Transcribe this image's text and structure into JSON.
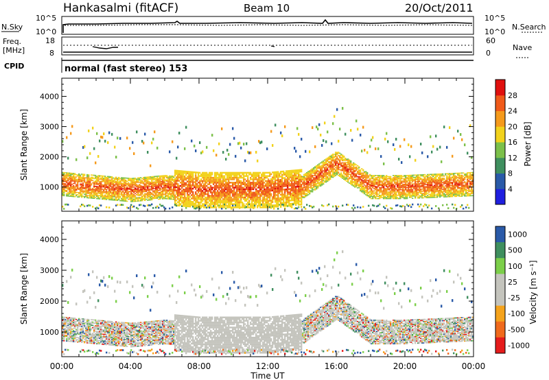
{
  "header": {
    "station": "Hankasalmi (fitACF)",
    "beam": "Beam 10",
    "date": "20/Oct/2011"
  },
  "noise_panel": {
    "left_label": "N.Sky",
    "right_label": "N.Search",
    "left_ticks": [
      "10^5",
      "10^0"
    ],
    "right_ticks": [
      "10^5",
      "10^0"
    ]
  },
  "freq_panel": {
    "left_label_1": "Freq.",
    "left_label_2": "[MHz]",
    "left_ticks": [
      "18",
      "8"
    ],
    "right_label": "Nave",
    "right_ticks": [
      "60",
      "0"
    ]
  },
  "cpid": {
    "label": "CPID",
    "value": "normal (fast stereo) 153"
  },
  "colors": {
    "power_scale": [
      "#1f1fdf",
      "#2a5aa8",
      "#3f8f5f",
      "#7cc04a",
      "#f2d21c",
      "#f59a1c",
      "#f05a1a",
      "#e0100e"
    ],
    "velocity_scale": [
      "#e51c1c",
      "#f06a1c",
      "#f5a31c",
      "#c4c4bd",
      "#c4c4bd",
      "#7ccf4a",
      "#3f8f5f",
      "#2a5aa8"
    ],
    "ground_scatter": "#c4c4bd"
  },
  "chart_data": [
    {
      "type": "heatmap",
      "title": "Power",
      "xlabel": "",
      "ylabel": "Slant Range [km]",
      "x_ticks": [
        "00:00",
        "04:00",
        "08:00",
        "12:00",
        "16:00",
        "20:00",
        "00:00"
      ],
      "y_ticks": [
        "1000",
        "2000",
        "3000",
        "4000"
      ],
      "ylim": [
        200,
        4600
      ],
      "colorbar": {
        "label": "Power [dB]",
        "ticks": [
          "4",
          "8",
          "12",
          "16",
          "20",
          "24",
          "28"
        ]
      },
      "series": [
        {
          "name": "",
          "x_hours": [
            0,
            2,
            4,
            6,
            8,
            10,
            12,
            14,
            16,
            18,
            20,
            22,
            24
          ],
          "range_km": [
            1100,
            1000,
            900,
            1000,
            900,
            900,
            900,
            1000,
            1800,
            1000,
            1000,
            1050,
            1100
          ],
          "power_db": [
            30,
            26,
            22,
            28,
            30,
            30,
            30,
            28,
            30,
            28,
            30,
            28,
            30
          ]
        }
      ]
    },
    {
      "type": "heatmap",
      "title": "Velocity",
      "xlabel": "Time UT",
      "ylabel": "Slant Range [km]",
      "x_ticks": [
        "00:00",
        "04:00",
        "08:00",
        "12:00",
        "16:00",
        "20:00",
        "00:00"
      ],
      "y_ticks": [
        "1000",
        "2000",
        "3000",
        "4000"
      ],
      "ylim": [
        200,
        4600
      ],
      "colorbar": {
        "label": "Velocity [m s⁻¹]",
        "ticks": [
          "1000",
          "500",
          "100",
          "25",
          "-25",
          "-100",
          "-500",
          "-1000"
        ]
      },
      "series": [
        {
          "name": "",
          "x_hours": [
            0,
            2,
            4,
            6,
            8,
            10,
            12,
            14,
            16,
            18,
            20,
            22,
            24
          ],
          "range_km": [
            1100,
            1000,
            900,
            1000,
            900,
            900,
            900,
            1000,
            1800,
            1000,
            1000,
            1050,
            1100
          ],
          "velocity_ms": [
            -100,
            -500,
            -100,
            0,
            0,
            0,
            0,
            0,
            100,
            500,
            0,
            0,
            100
          ]
        }
      ]
    }
  ]
}
